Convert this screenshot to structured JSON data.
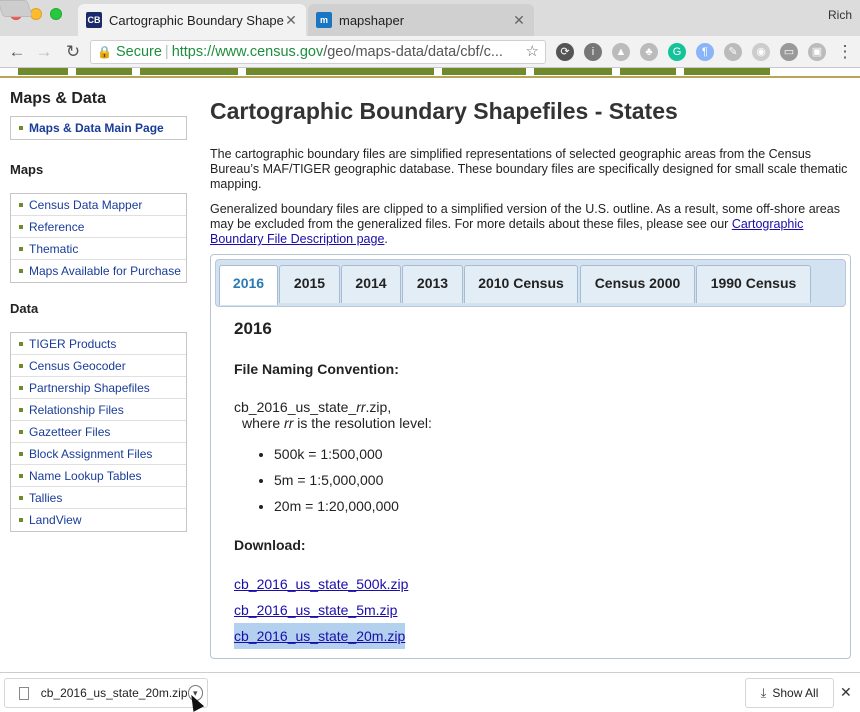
{
  "browser": {
    "tabs": [
      {
        "title": "Cartographic Boundary Shapef",
        "favicon": "CB",
        "active": true
      },
      {
        "title": "mapshaper",
        "favicon": "m",
        "active": false
      }
    ],
    "profile": "Rich",
    "security_label": "Secure",
    "url_host": "https://www.census.gov",
    "url_path": "/geo/maps-data/data/cbf/c..."
  },
  "sidebar": {
    "section1_title": "Maps & Data",
    "section1_items": [
      "Maps & Data Main Page"
    ],
    "section2_title": "Maps",
    "section2_items": [
      "Census Data Mapper",
      "Reference",
      "Thematic",
      "Maps Available for Purchase"
    ],
    "section3_title": "Data",
    "section3_items": [
      "TIGER Products",
      "Census Geocoder",
      "Partnership Shapefiles",
      "Relationship Files",
      "Gazetteer Files",
      "Block Assignment Files",
      "Name Lookup Tables",
      "Tallies",
      "LandView"
    ]
  },
  "main": {
    "title": "Cartographic Boundary Shapefiles - States",
    "para1": "The cartographic boundary files are simplified representations of selected geographic areas from the Census Bureau’s MAF/TIGER geographic database. These boundary files are specifically designed for small scale thematic mapping.",
    "para2_text": "Generalized boundary files are clipped to a simplified version of the U.S. outline. As a result, some off-shore areas may be excluded from the generalized files. For more details about these files, please see our",
    "para2_link": "Cartographic Boundary File Description page",
    "para2_end": ".",
    "year_tabs": [
      "2016",
      "2015",
      "2014",
      "2013",
      "2010 Census",
      "Census 2000",
      "1990 Census"
    ],
    "active_tab": "2016",
    "section_heading": "2016",
    "naming_heading": "File Naming Convention:",
    "filename_prefix": "cb_2016_us_state_",
    "filename_var": "rr",
    "filename_suffix": ".zip,",
    "resolution_prefix": "where ",
    "resolution_var": "rr",
    "resolution_suffix": " is the resolution level:",
    "resolutions": [
      "500k = 1:500,000",
      "5m = 1:5,000,000",
      "20m = 1:20,000,000"
    ],
    "download_heading": "Download:",
    "downloads": [
      "cb_2016_us_state_500k.zip",
      "cb_2016_us_state_5m.zip",
      "cb_2016_us_state_20m.zip"
    ]
  },
  "shelf": {
    "file": "cb_2016_us_state_20m.zip",
    "show_all": "Show All"
  }
}
